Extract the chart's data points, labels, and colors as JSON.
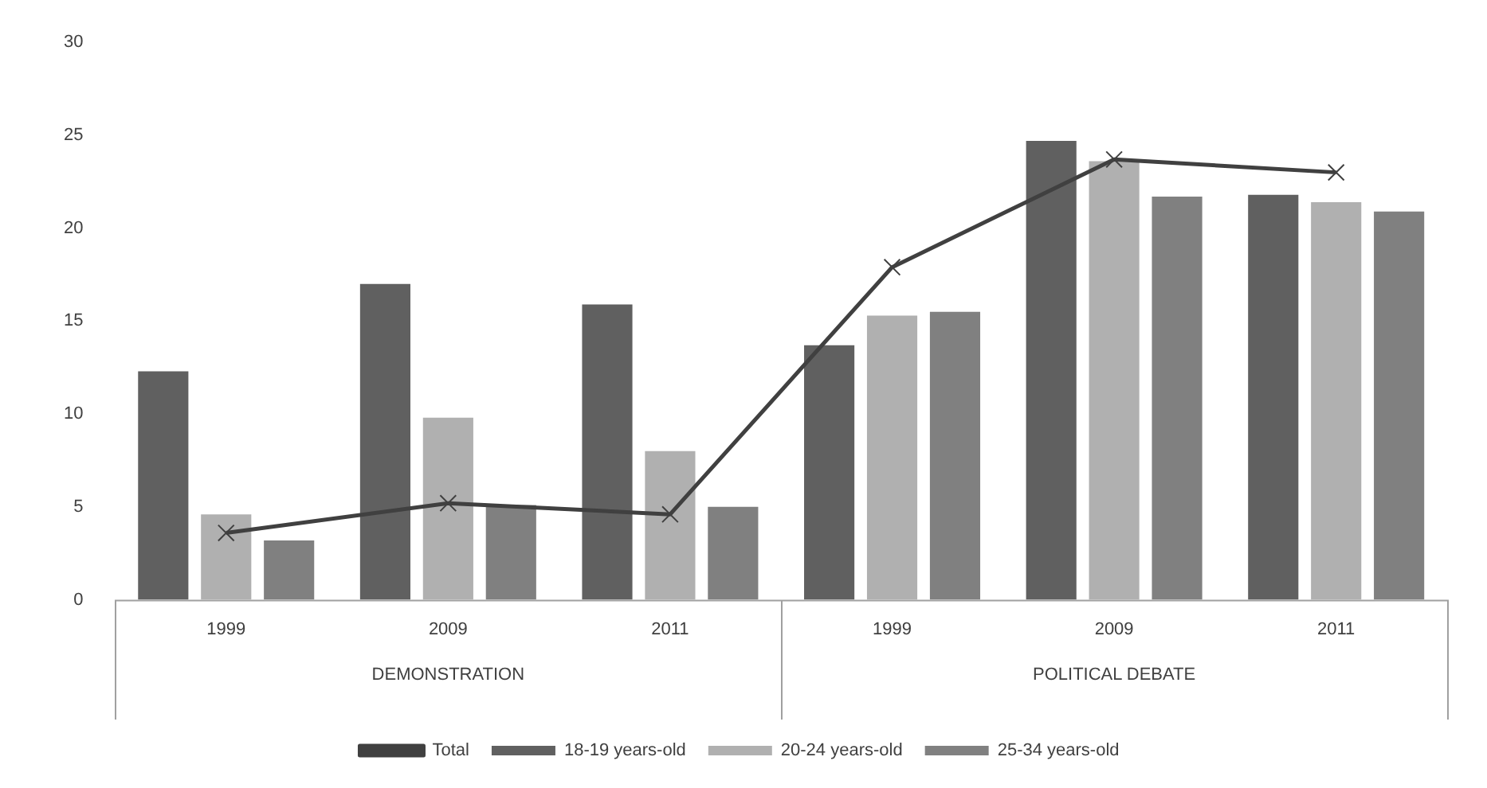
{
  "chart_data": {
    "type": "bar",
    "categories": [
      "1999",
      "2009",
      "2011",
      "1999",
      "2009",
      "2011"
    ],
    "annotations": [
      "DEMONSTRATION",
      "POLITICAL DEBATE"
    ],
    "series": [
      {
        "name": "18-19 years-old",
        "color": "#606060",
        "values": [
          12.3,
          17.0,
          15.9,
          13.7,
          24.7,
          21.8
        ]
      },
      {
        "name": "20-24 years-old",
        "color": "#b0b0b0",
        "values": [
          4.6,
          9.8,
          8.0,
          15.3,
          23.6,
          21.4
        ]
      },
      {
        "name": "25-34 years-old",
        "color": "#808080",
        "values": [
          3.2,
          5.1,
          5.0,
          15.5,
          21.7,
          20.9
        ]
      },
      {
        "name": "Total",
        "type": "line",
        "color": "#404040",
        "marker": "cross",
        "values": [
          3.6,
          5.2,
          4.6,
          17.9,
          23.7,
          23.0
        ]
      }
    ],
    "ylim": [
      0,
      30
    ],
    "yticks": [
      0,
      5,
      10,
      15,
      20,
      25,
      30
    ],
    "grid": false,
    "legend": "bottom"
  }
}
